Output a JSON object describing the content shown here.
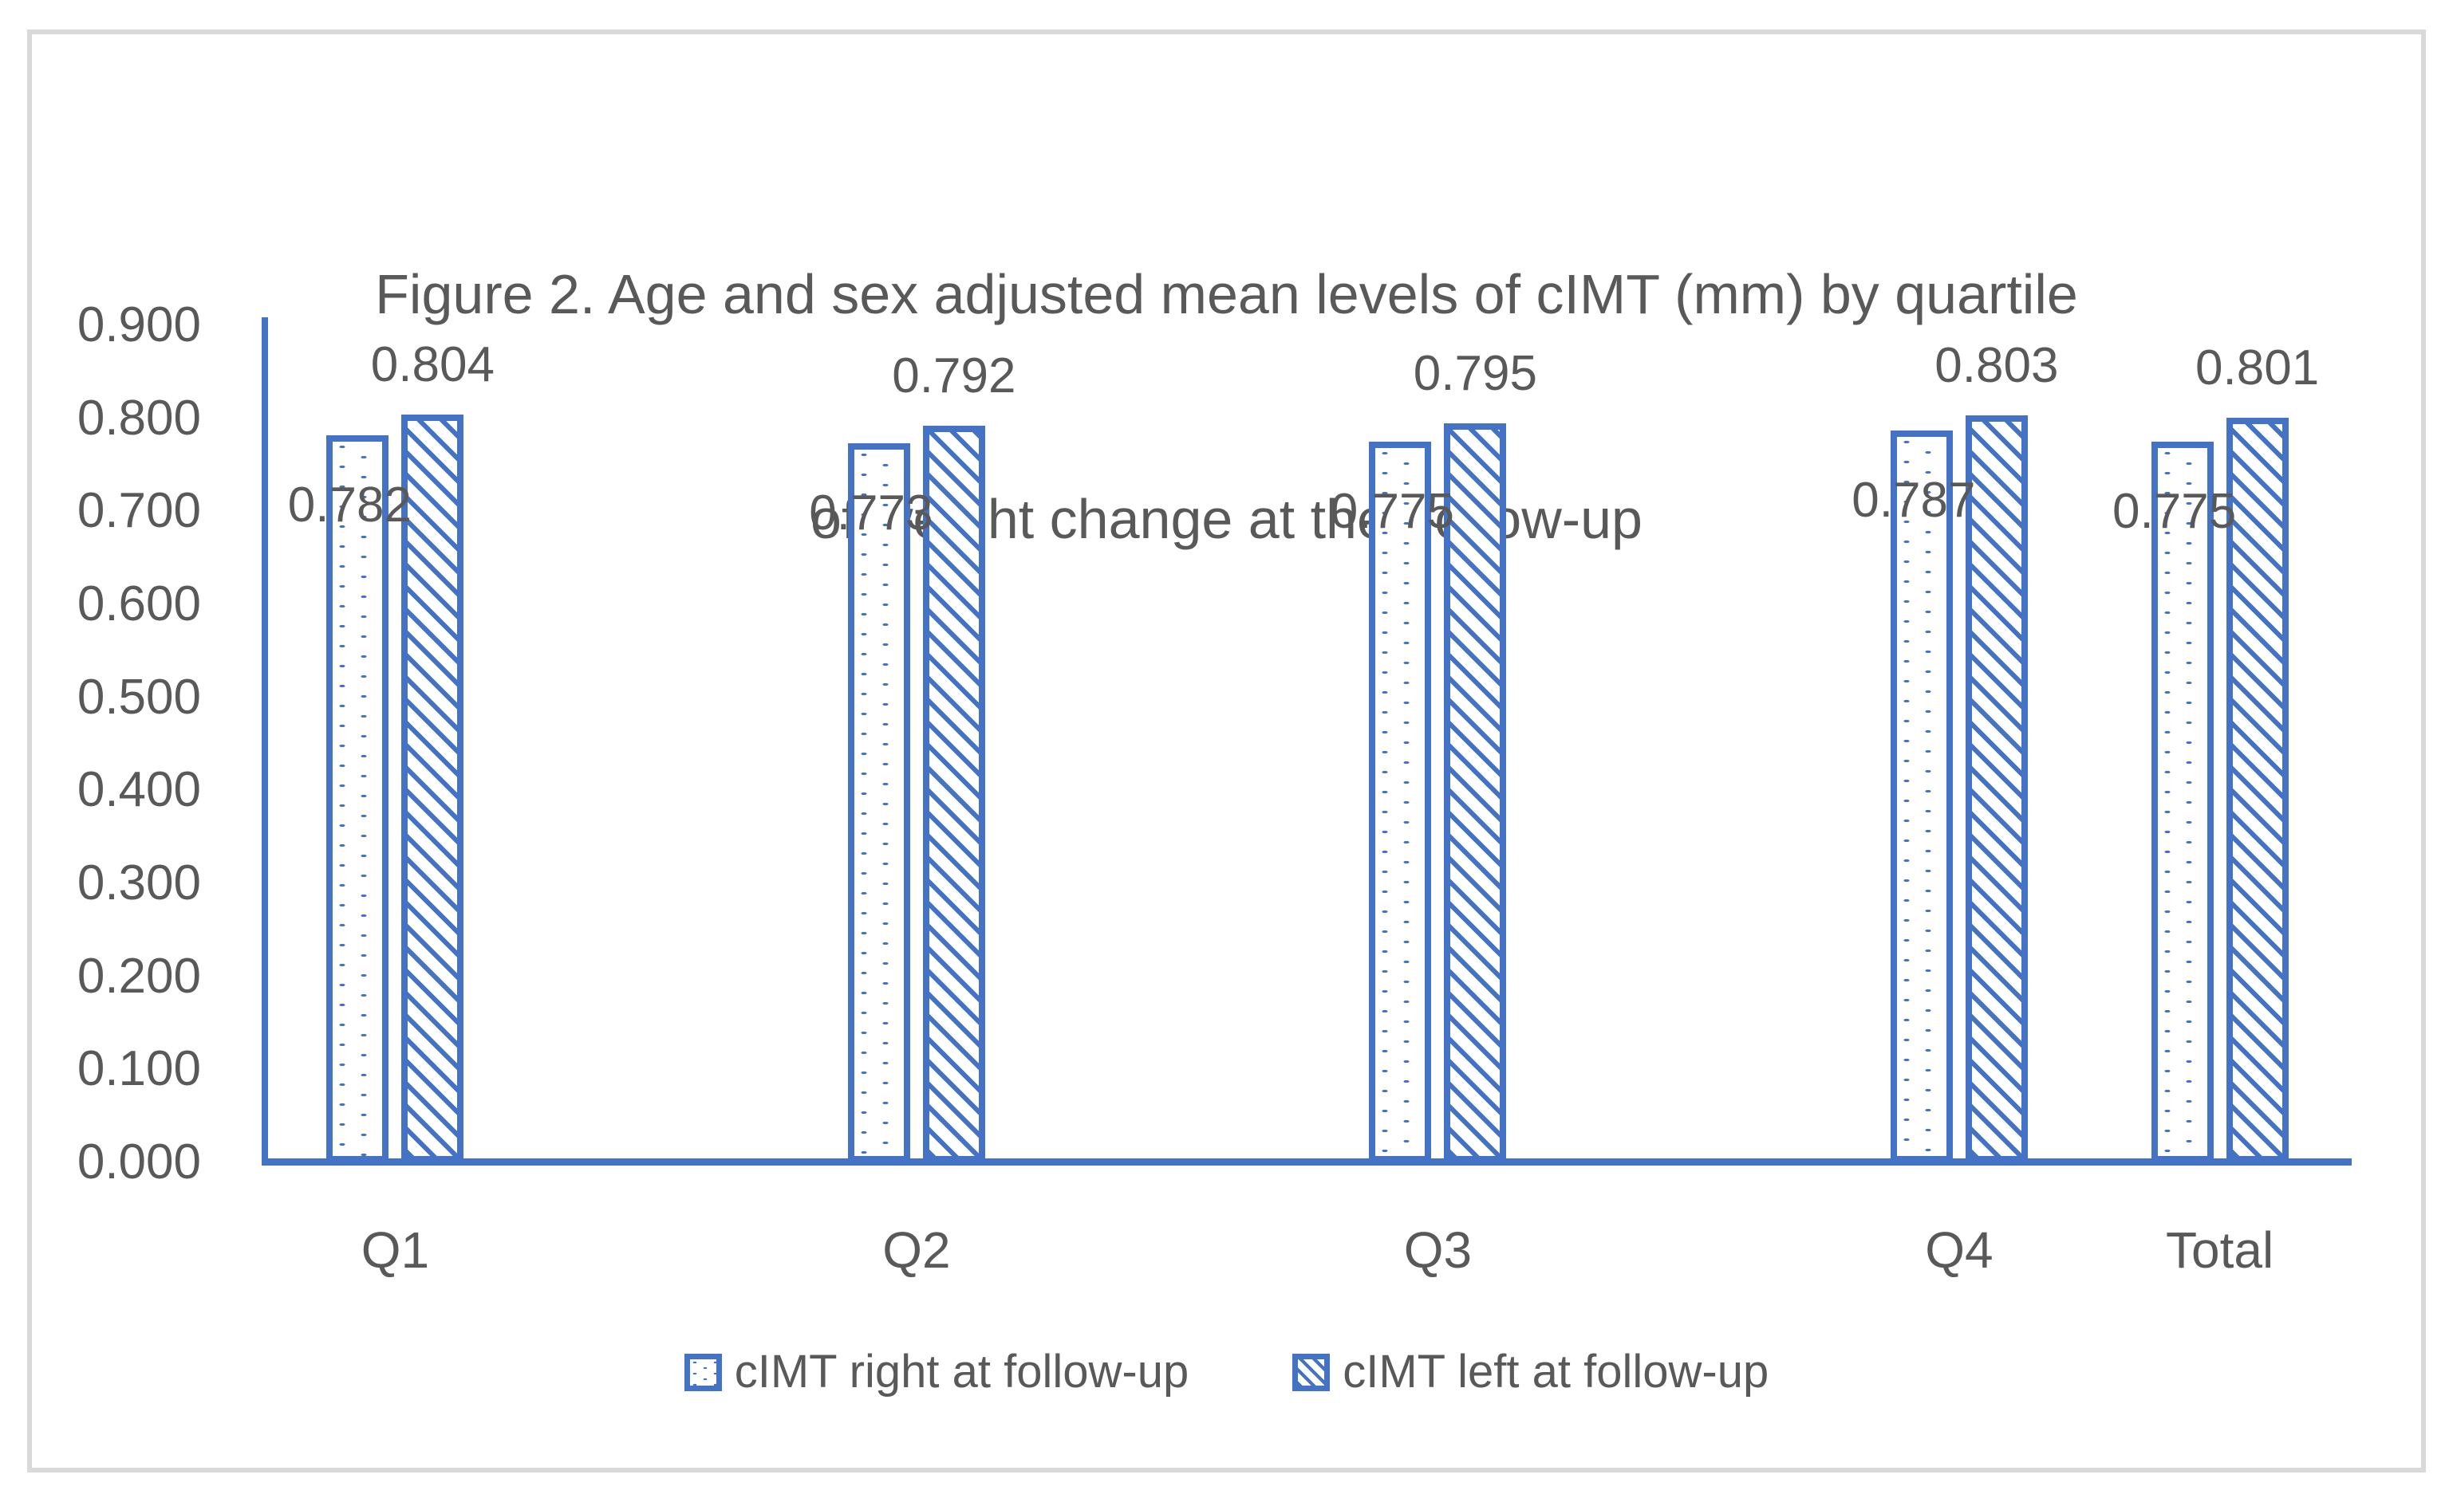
{
  "figure": {
    "title_line1": "Figure 2. Age and sex adjusted mean levels of cIMT (mm) by quartile",
    "title_line2": "of weight change at the  follow-up"
  },
  "chart_data": {
    "type": "bar",
    "title": "Figure 2. Age and sex adjusted mean levels of cIMT (mm) by quartile of weight change at the follow-up",
    "categories": [
      "Q1",
      "Q2",
      "Q3",
      "Q4",
      "Total"
    ],
    "series": [
      {
        "name": "cIMT right at follow-up",
        "pattern": "dotted",
        "values": [
          0.782,
          0.773,
          0.775,
          0.787,
          0.775
        ],
        "labels": [
          "0.782",
          "0.773",
          "0.775",
          "0.787",
          "0.775"
        ]
      },
      {
        "name": "cIMT left at follow-up",
        "pattern": "diagonal",
        "values": [
          0.804,
          0.792,
          0.795,
          0.803,
          0.801
        ],
        "labels": [
          "0.804",
          "0.792",
          "0.795",
          "0.803",
          "0.801"
        ]
      }
    ],
    "xlabel": "",
    "ylabel": "",
    "ylim": [
      0,
      0.9
    ],
    "ytick_labels": [
      "0.900",
      "0.800",
      "0.700",
      "0.600",
      "0.500",
      "0.400",
      "0.300",
      "0.200",
      "0.100",
      "0.000"
    ],
    "grid": false,
    "legend_position": "bottom",
    "category_slot_centers": [
      0.5,
      2.5,
      4.5,
      6.5,
      7.5
    ],
    "axis_slot_count": 8
  },
  "colors": {
    "accent": "#4472C4",
    "text": "#595959",
    "frame_border": "#D9D9D9",
    "background": "#FFFFFF"
  }
}
